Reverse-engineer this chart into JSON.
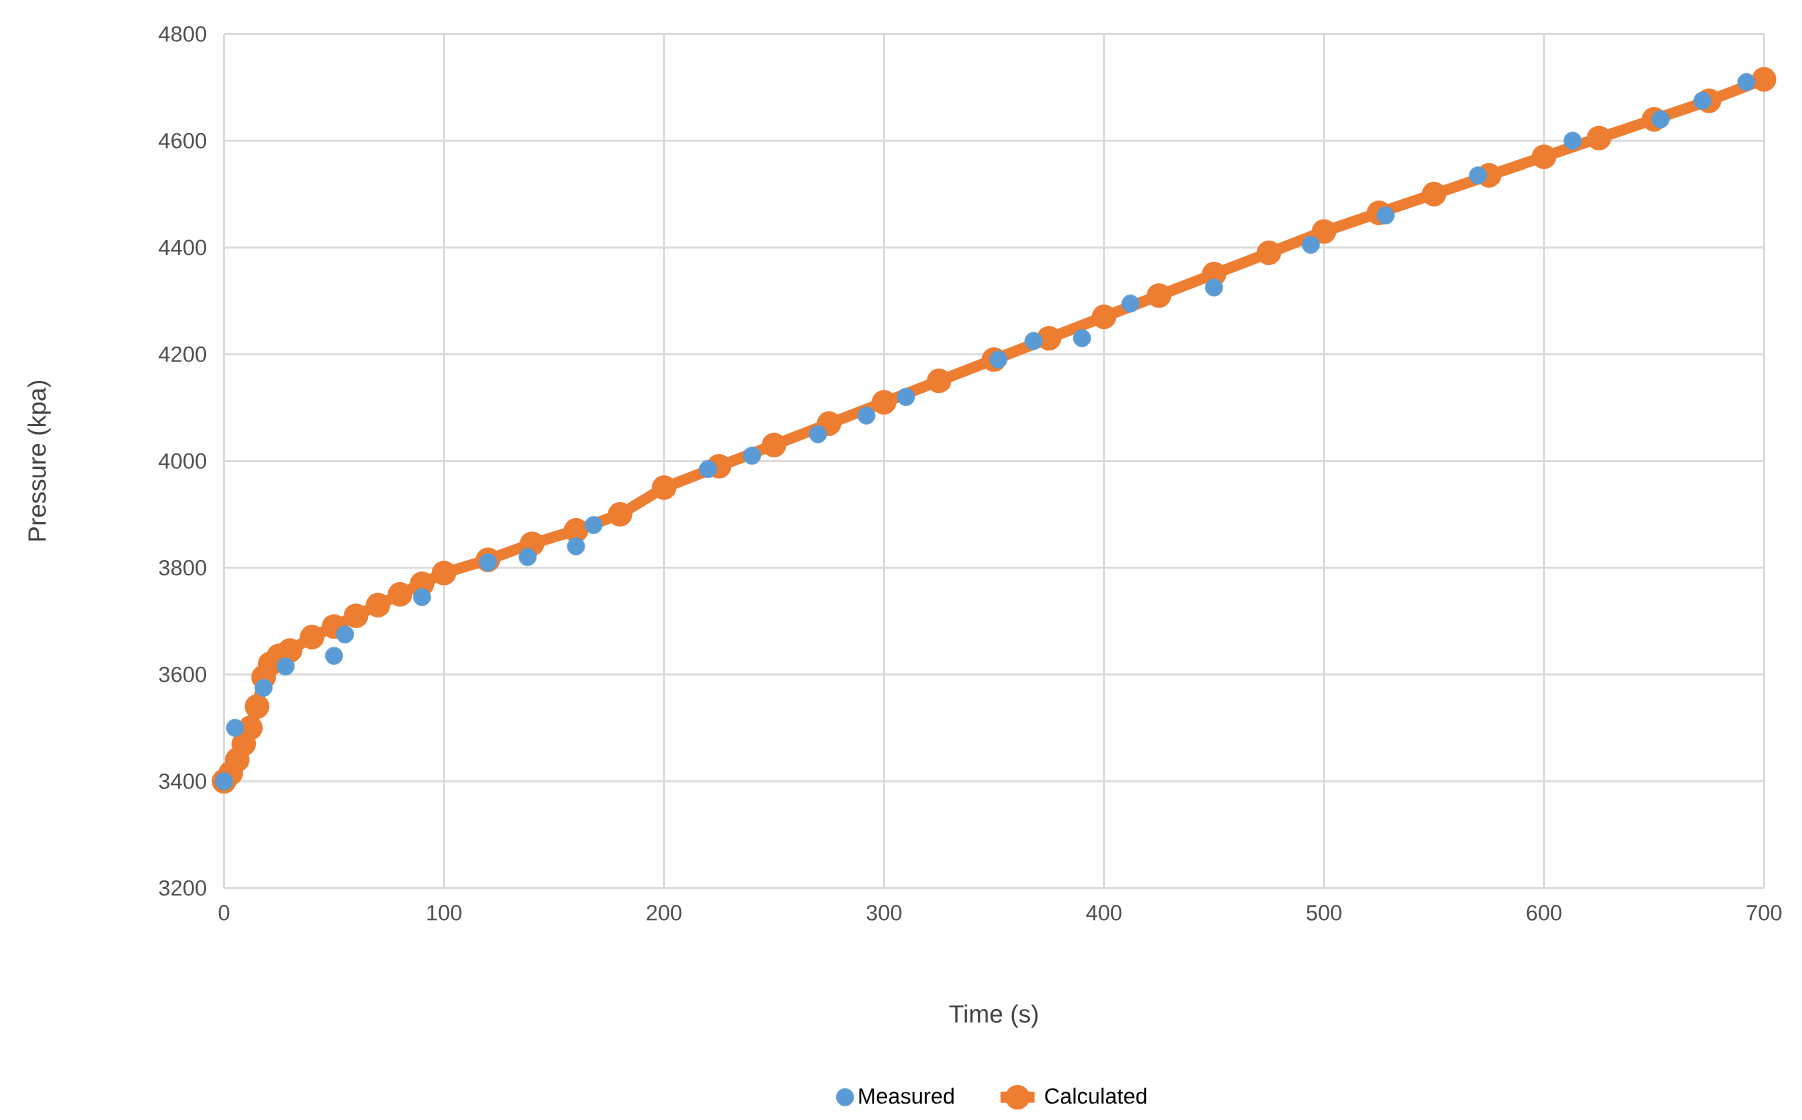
{
  "chart_data": {
    "type": "line",
    "xlabel": "Time (s)",
    "ylabel": "Pressure (kpa)",
    "xlim": [
      0,
      700
    ],
    "xticks": [
      0,
      100,
      200,
      300,
      400,
      500,
      600,
      700
    ],
    "ylim": [
      3200,
      4800
    ],
    "yticks": [
      3200,
      3400,
      3600,
      3800,
      4000,
      4200,
      4400,
      4600,
      4800
    ],
    "grid": true,
    "legend": "bottom",
    "marker": "circle",
    "series": [
      {
        "name": "Measured",
        "type": "scatter",
        "color": "#5b9bd5",
        "x": [
          0,
          5,
          18,
          28,
          50,
          55,
          90,
          120,
          138,
          160,
          168,
          220,
          240,
          270,
          292,
          310,
          352,
          368,
          390,
          412,
          450,
          494,
          528,
          570,
          613,
          653,
          672,
          692
        ],
        "values": [
          3400,
          3500,
          3575,
          3615,
          3635,
          3675,
          3745,
          3810,
          3820,
          3840,
          3880,
          3985,
          4010,
          4050,
          4085,
          4120,
          4190,
          4225,
          4230,
          4295,
          4325,
          4405,
          4460,
          4535,
          4600,
          4640,
          4675,
          4710
        ]
      },
      {
        "name": "Calculated",
        "color": "#ed7d31",
        "x": [
          0,
          3,
          6,
          9,
          12,
          15,
          18,
          21,
          25,
          30,
          40,
          50,
          60,
          70,
          80,
          90,
          100,
          120,
          140,
          160,
          180,
          200,
          225,
          250,
          275,
          300,
          325,
          350,
          375,
          400,
          425,
          450,
          475,
          500,
          525,
          550,
          575,
          600,
          625,
          650,
          675,
          700
        ],
        "values": [
          3400,
          3415,
          3440,
          3470,
          3500,
          3540,
          3595,
          3620,
          3635,
          3645,
          3670,
          3690,
          3710,
          3730,
          3750,
          3770,
          3790,
          3815,
          3845,
          3870,
          3900,
          3950,
          3990,
          4030,
          4070,
          4110,
          4150,
          4190,
          4230,
          4270,
          4310,
          4350,
          4390,
          4430,
          4465,
          4500,
          4535,
          4570,
          4605,
          4640,
          4675,
          4715
        ]
      }
    ]
  }
}
